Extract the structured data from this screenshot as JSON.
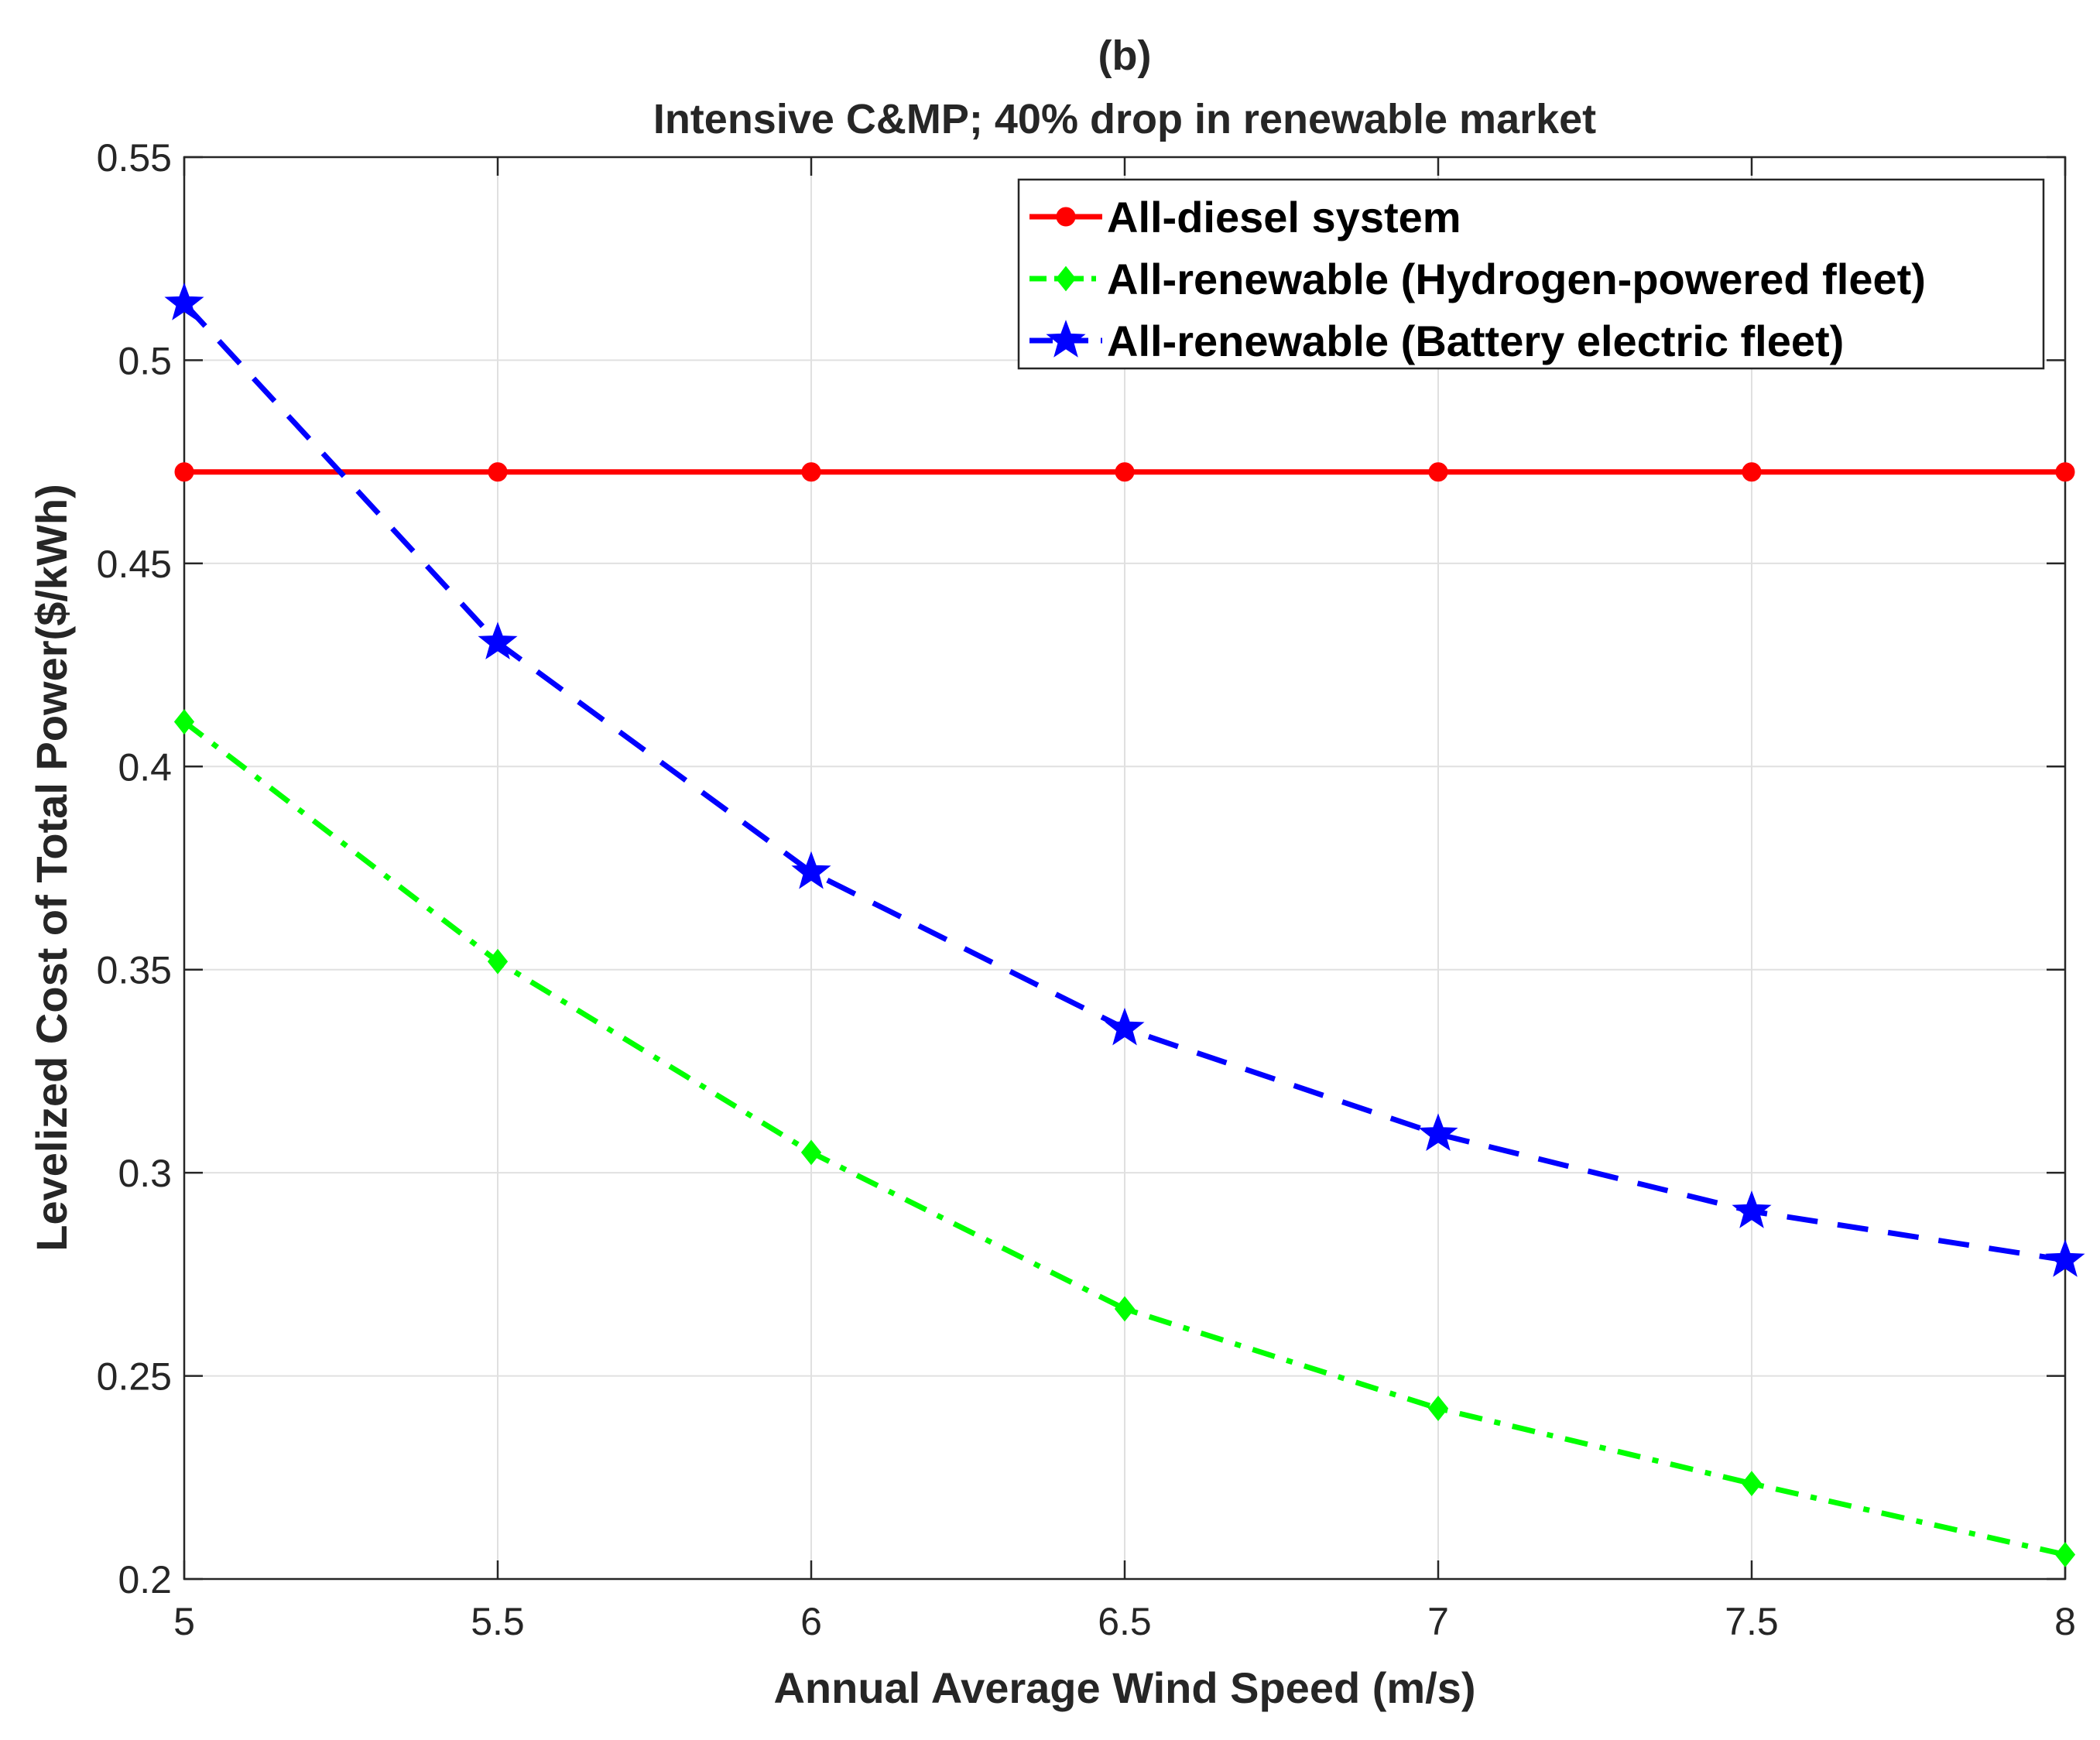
{
  "chart_data": {
    "type": "line",
    "panel_label": "(b)",
    "title": "Intensive C&MP; 40% drop in renewable market",
    "xlabel": "Annual Average Wind Speed (m/s)",
    "ylabel": "Levelized Cost of Total Power($/kWh)",
    "xlim": [
      5,
      8
    ],
    "ylim": [
      0.2,
      0.55
    ],
    "xticks": [
      5,
      5.5,
      6,
      6.5,
      7,
      7.5,
      8
    ],
    "xtick_labels": [
      "5",
      "5.5",
      "6",
      "6.5",
      "7",
      "7.5",
      "8"
    ],
    "yticks": [
      0.2,
      0.25,
      0.3,
      0.35,
      0.4,
      0.45,
      0.5,
      0.55
    ],
    "ytick_labels": [
      "0.2",
      "0.25",
      "0.3",
      "0.35",
      "0.4",
      "0.45",
      "0.5",
      "0.55"
    ],
    "grid": true,
    "legend_position": "top-right",
    "x": [
      5,
      5.5,
      6,
      6.5,
      7,
      7.5,
      8
    ],
    "series": [
      {
        "name": "All-diesel system",
        "color": "#ff0000",
        "line_style": "solid",
        "marker": "circle",
        "values": [
          0.4725,
          0.4725,
          0.4725,
          0.4725,
          0.4725,
          0.4725,
          0.4725
        ]
      },
      {
        "name": "All-renewable (Hydrogen-powered fleet)",
        "color": "#00ff00",
        "line_style": "dashdot",
        "marker": "diamond",
        "values": [
          0.411,
          0.352,
          0.305,
          0.2665,
          0.242,
          0.2235,
          0.206
        ]
      },
      {
        "name": "All-renewable (Battery electric fleet)",
        "color": "#0000ff",
        "line_style": "dashed",
        "marker": "star",
        "values": [
          0.514,
          0.4305,
          0.374,
          0.3355,
          0.3095,
          0.2905,
          0.2785
        ]
      }
    ]
  }
}
